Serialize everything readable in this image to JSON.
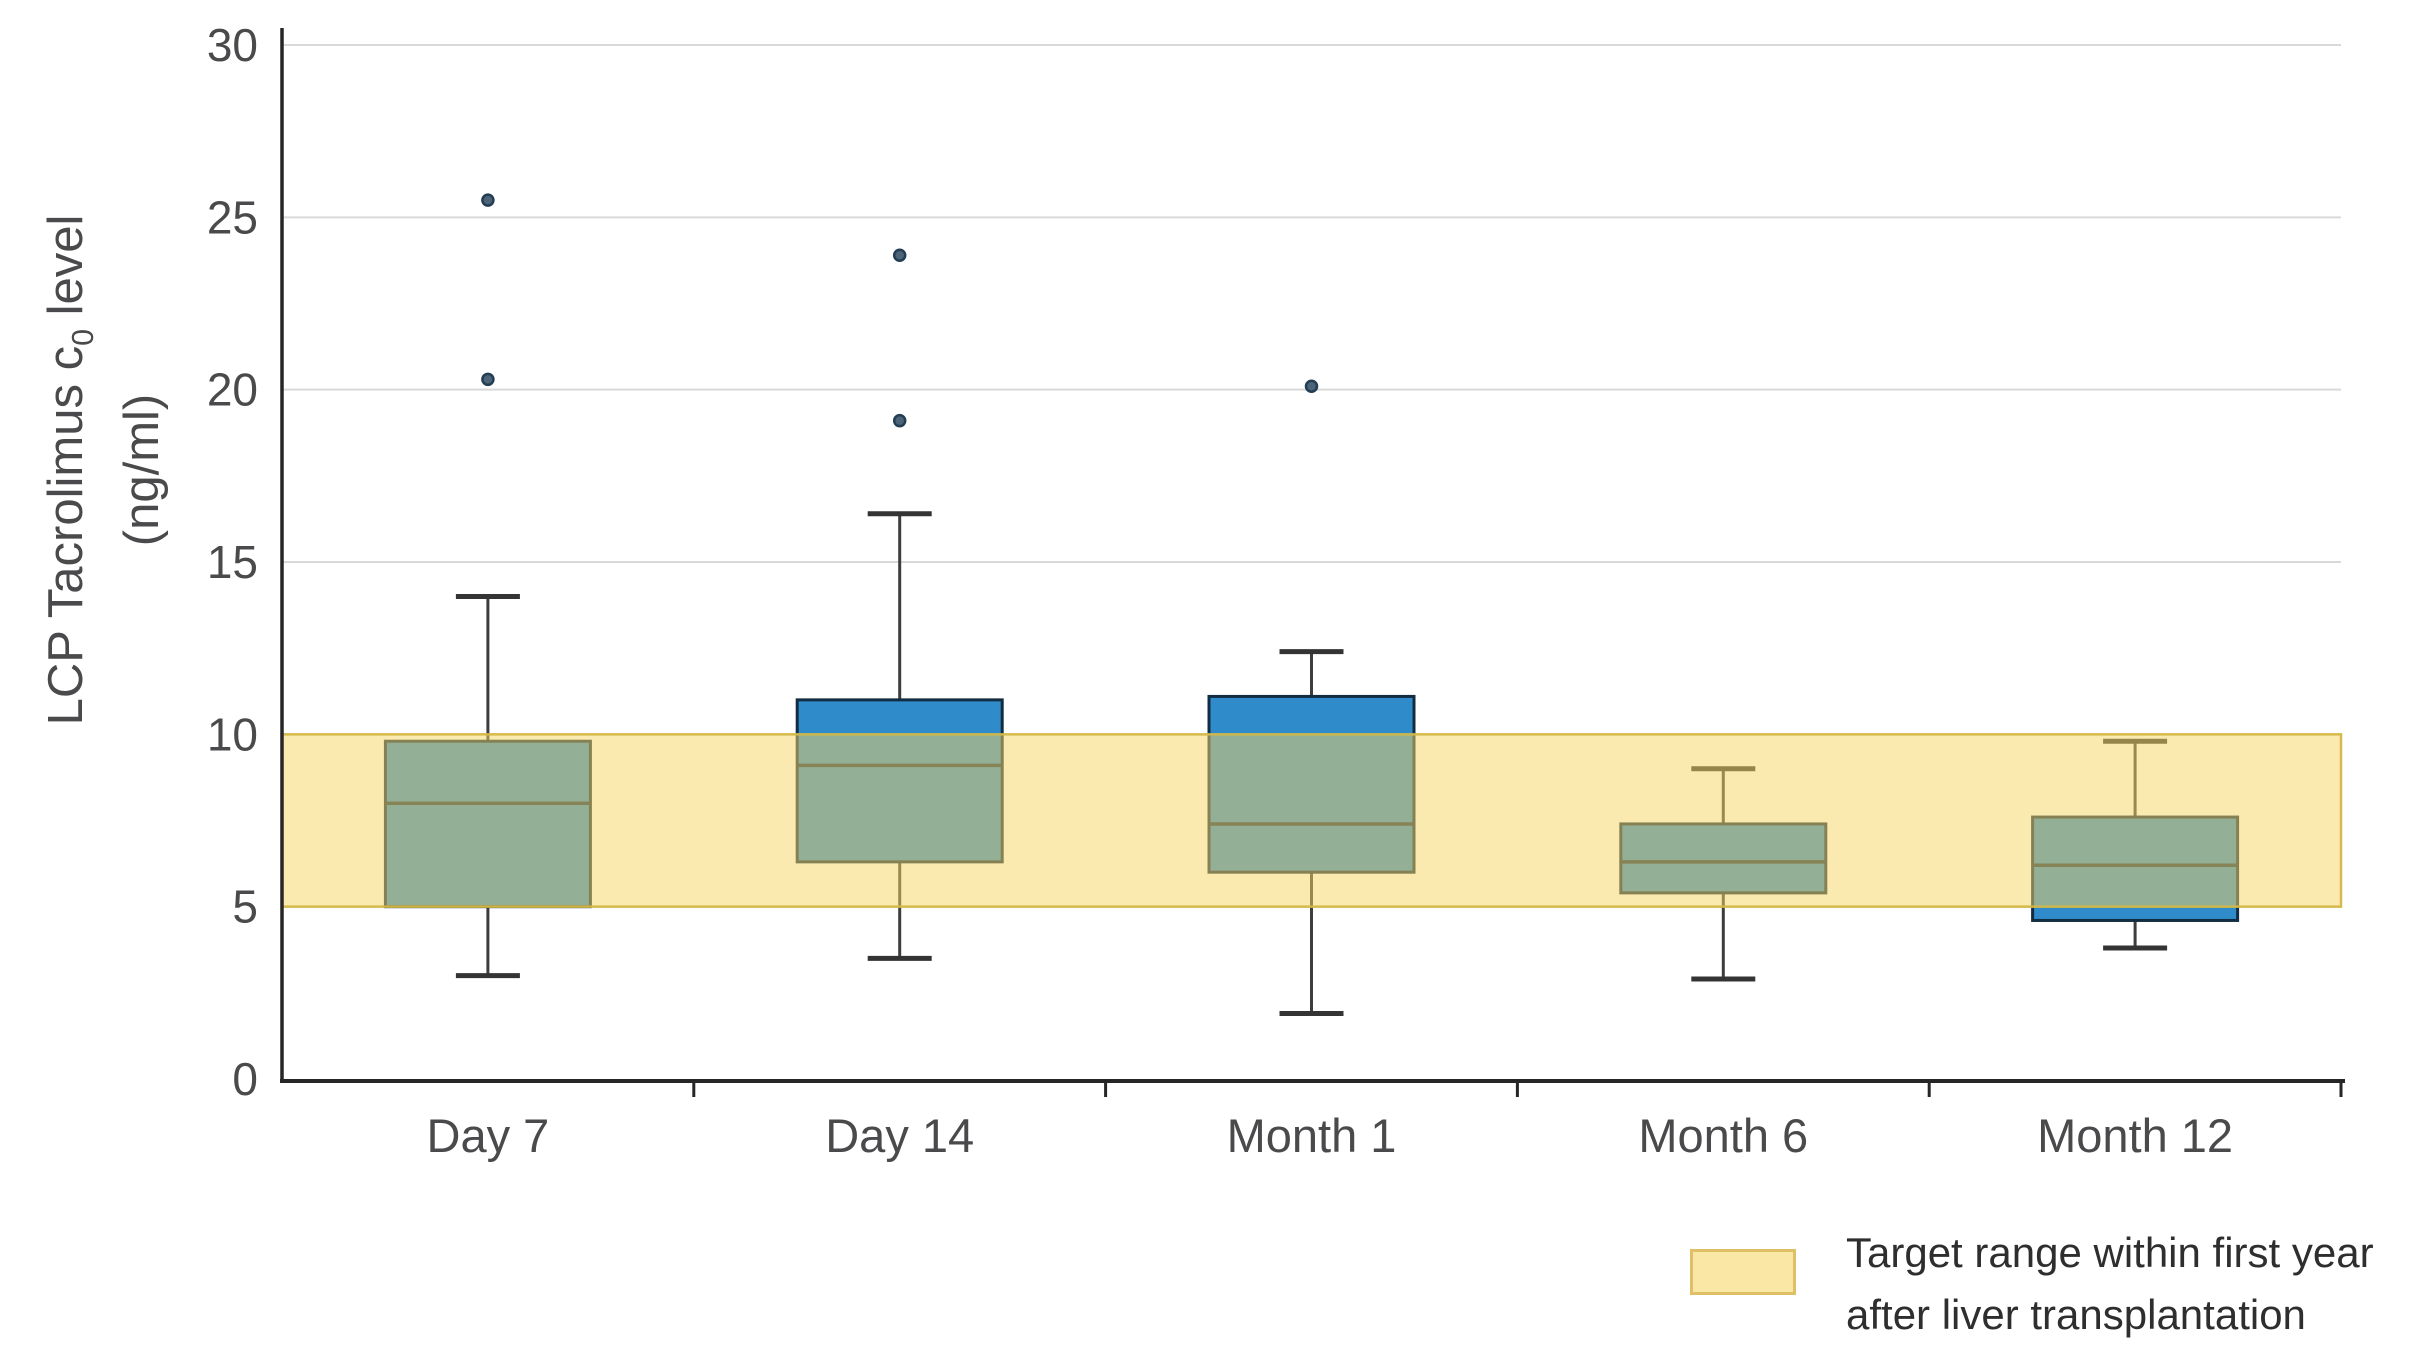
{
  "figure": {
    "ylabel": {
      "pre": "LCP Tacrolimus c",
      "sub": "0",
      "post": " level",
      "line2": "(ng/ml)"
    },
    "legend": {
      "lines": [
        "Target range within first year",
        "after liver transplantation"
      ],
      "full_label": "Target range within first year after liver transplantation"
    }
  },
  "chart_data": {
    "type": "boxplot",
    "title": "",
    "xlabel": "",
    "ylabel": "LCP Tacrolimus c0 level (ng/ml)",
    "ylim": [
      0,
      30
    ],
    "yticks": [
      0,
      5,
      10,
      15,
      20,
      25,
      30
    ],
    "gridline_values": [
      15,
      20,
      25,
      30
    ],
    "grid": "horizontal",
    "legend_position": "bottom-right",
    "units": "ng/ml",
    "categories": [
      "Day 7",
      "Day 14",
      "Month 1",
      "Month 6",
      "Month 12"
    ],
    "series": [
      {
        "category": "Day 7",
        "min": 3.0,
        "q1": 5.0,
        "median": 8.0,
        "q3": 9.8,
        "max": 14.0,
        "outliers": [
          20.3,
          25.5
        ]
      },
      {
        "category": "Day 14",
        "min": 3.5,
        "q1": 6.3,
        "median": 9.1,
        "q3": 11.0,
        "max": 16.4,
        "outliers": [
          19.1,
          23.9
        ]
      },
      {
        "category": "Month 1",
        "min": 1.9,
        "q1": 6.0,
        "median": 7.4,
        "q3": 11.1,
        "max": 12.4,
        "outliers": [
          20.1
        ]
      },
      {
        "category": "Month 6",
        "min": 2.9,
        "q1": 5.4,
        "median": 6.3,
        "q3": 7.4,
        "max": 9.0,
        "outliers": []
      },
      {
        "category": "Month 12",
        "min": 3.8,
        "q1": 4.6,
        "median": 6.2,
        "q3": 7.6,
        "max": 9.8,
        "outliers": []
      }
    ],
    "target_band": {
      "from": 5,
      "to": 10,
      "label": "Target range within first year after liver transplantation"
    },
    "colors": {
      "box_fill": "#2f8bca",
      "box_border": "#122c42",
      "median_line": "#14304a",
      "whisker_line": "#3d3d3d",
      "whisker_cap": "#343434",
      "outlier_fill": "#4d6478",
      "outlier_border": "#233d52",
      "band_fill": "rgba(247,213,97,0.50)",
      "band_border": "rgba(211,183,70,0.95)",
      "gridline": "#d9d9d9",
      "axis": "#262626",
      "tick_text": "#4a4a4c",
      "legend_swatch_fill": "#fbe7a5",
      "legend_swatch_border": "#dfc067"
    }
  }
}
